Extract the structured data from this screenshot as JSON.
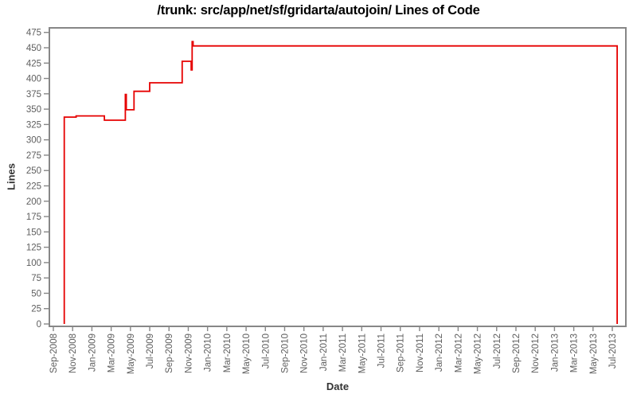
{
  "chart_data": {
    "type": "line",
    "step": true,
    "grid": false,
    "legend": "none",
    "title": "/trunk: src/app/net/sf/gridarta/autojoin/ Lines of Code",
    "xlabel": "Date",
    "ylabel": "Lines",
    "colors": {
      "line": "#e60000",
      "frame": "#878787",
      "tick_text": "#5e5e5e",
      "axis_title_text": "#333333",
      "title_text": "#000000",
      "background": "#ffffff"
    },
    "y_axis": {
      "ticks": [
        0,
        25,
        50,
        75,
        100,
        125,
        150,
        175,
        200,
        225,
        250,
        275,
        300,
        325,
        350,
        375,
        400,
        425,
        450,
        475
      ],
      "range": [
        0,
        482
      ]
    },
    "x_axis": {
      "start_month": "2008-09",
      "tick_interval_months": 2,
      "tick_labels": [
        "Sep-2008",
        "Nov-2008",
        "Jan-2009",
        "Mar-2009",
        "May-2009",
        "Jul-2009",
        "Sep-2009",
        "Nov-2009",
        "Jan-2010",
        "Mar-2010",
        "May-2010",
        "Jul-2010",
        "Sep-2010",
        "Nov-2010",
        "Jan-2011",
        "Mar-2011",
        "May-2011",
        "Jul-2011",
        "Sep-2011",
        "Nov-2011",
        "Jan-2012",
        "Mar-2012",
        "May-2012",
        "Jul-2012",
        "Sep-2012",
        "Nov-2012",
        "Jan-2013",
        "Mar-2013",
        "May-2013",
        "Jul-2013"
      ]
    },
    "series": [
      {
        "name": "Lines of Code",
        "color": "#e60000",
        "points": [
          [
            "2008-10-05",
            0
          ],
          [
            "2008-10-05",
            337
          ],
          [
            "2008-11-12",
            339
          ],
          [
            "2009-02-10",
            332
          ],
          [
            "2009-04-15",
            374
          ],
          [
            "2009-04-18",
            349
          ],
          [
            "2009-05-12",
            379
          ],
          [
            "2009-07-01",
            393
          ],
          [
            "2009-10-12",
            428
          ],
          [
            "2009-11-10",
            414
          ],
          [
            "2009-11-13",
            460
          ],
          [
            "2009-11-16",
            453
          ],
          [
            "2013-07-16",
            453
          ],
          [
            "2013-07-16",
            0
          ]
        ]
      }
    ]
  }
}
